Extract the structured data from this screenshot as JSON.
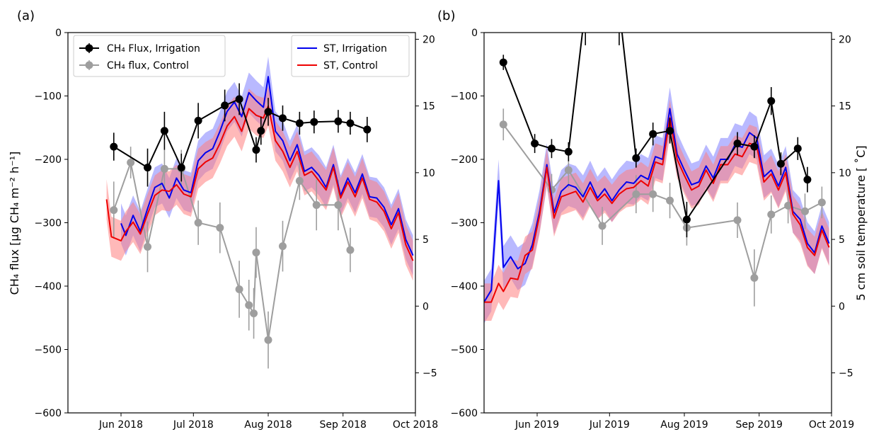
{
  "colors": {
    "flux_irrigation": "#000000",
    "flux_control": "#9e9e9e",
    "st_irrigation": "#0000ee",
    "st_control": "#ee0000",
    "band_irrigation": "#8080ff",
    "band_control": "#ff8080"
  },
  "labels": {
    "ylabel_left": "CH₄ flux [µg CH₄ m⁻² h⁻¹]",
    "ylabel_right": "5 cm soil temperature [ ˚C]"
  },
  "legend": {
    "flux_irrigation": "CH₄ Flux, Irrigation",
    "flux_control": "CH₄ flux, Control",
    "st_irrigation": "ST, Irrigation",
    "st_control": "ST, Control"
  },
  "chart_data": [
    {
      "type": "line",
      "panel_label": "(a)",
      "x_type": "date",
      "xlim": [
        "2018-05-10",
        "2018-10-01"
      ],
      "x_ticks": [
        {
          "date": "2018-06-01",
          "label": "Jun 2018"
        },
        {
          "date": "2018-07-01",
          "label": "Jul 2018"
        },
        {
          "date": "2018-08-01",
          "label": "Aug 2018"
        },
        {
          "date": "2018-09-01",
          "label": "Sep 2018"
        },
        {
          "date": "2018-10-01",
          "label": "Oct 2018"
        }
      ],
      "ylim_left": [
        -600,
        0
      ],
      "yticks_left": [
        0,
        -100,
        -200,
        -300,
        -400,
        -500,
        -600
      ],
      "ylim_right": [
        -8,
        20.5
      ],
      "yticks_right": [
        20,
        15,
        10,
        5,
        0,
        -5
      ],
      "legend_left_position": "top-left",
      "legend_right_position": "top-right",
      "series": [
        {
          "name": "CH₄ Flux, Irrigation",
          "axis": "left",
          "marker": "circle",
          "x": [
            "2018-05-29",
            "2018-06-12",
            "2018-06-19",
            "2018-06-26",
            "2018-07-03",
            "2018-07-14",
            "2018-07-20",
            "2018-07-27",
            "2018-07-29",
            "2018-08-01",
            "2018-08-07",
            "2018-08-14",
            "2018-08-20",
            "2018-08-30",
            "2018-09-04",
            "2018-09-11"
          ],
          "y": [
            -180,
            -213,
            -155,
            -213,
            -139,
            -115,
            -105,
            -185,
            -155,
            -125,
            -135,
            -143,
            -141,
            -140,
            -143,
            -153
          ],
          "yerr": [
            22,
            30,
            30,
            22,
            28,
            25,
            25,
            20,
            22,
            22,
            20,
            18,
            18,
            18,
            18,
            20
          ]
        },
        {
          "name": "CH₄ flux, Control",
          "axis": "left",
          "marker": "circle",
          "x": [
            "2018-05-29",
            "2018-06-05",
            "2018-06-12",
            "2018-06-19",
            "2018-06-26",
            "2018-07-03",
            "2018-07-12",
            "2018-07-20",
            "2018-07-24",
            "2018-07-26",
            "2018-07-27",
            "2018-08-01",
            "2018-08-07",
            "2018-08-14",
            "2018-08-21",
            "2018-08-30",
            "2018-09-04"
          ],
          "y": [
            -280,
            -205,
            -338,
            -215,
            -215,
            -300,
            -308,
            -405,
            -430,
            -443,
            -347,
            -485,
            -337,
            -234,
            -272,
            -272,
            -343
          ],
          "yerr": [
            45,
            25,
            40,
            30,
            30,
            35,
            40,
            45,
            40,
            40,
            40,
            45,
            40,
            30,
            40,
            40,
            35
          ]
        },
        {
          "name": "ST, Irrigation",
          "axis": "right",
          "x": [
            "2018-06-01",
            "2018-06-03",
            "2018-06-06",
            "2018-06-09",
            "2018-06-12",
            "2018-06-15",
            "2018-06-18",
            "2018-06-21",
            "2018-06-24",
            "2018-06-27",
            "2018-06-30",
            "2018-07-03",
            "2018-07-06",
            "2018-07-09",
            "2018-07-12",
            "2018-07-15",
            "2018-07-18",
            "2018-07-21",
            "2018-07-24",
            "2018-07-27",
            "2018-07-30",
            "2018-08-01",
            "2018-08-04",
            "2018-08-07",
            "2018-08-10",
            "2018-08-13",
            "2018-08-16",
            "2018-08-19",
            "2018-08-22",
            "2018-08-25",
            "2018-08-28",
            "2018-08-31",
            "2018-09-03",
            "2018-09-06",
            "2018-09-09",
            "2018-09-12",
            "2018-09-15",
            "2018-09-18",
            "2018-09-21",
            "2018-09-24",
            "2018-09-27",
            "2018-09-30"
          ],
          "y": [
            6.2,
            5.3,
            6.8,
            5.6,
            7.3,
            8.9,
            9.2,
            8.1,
            9.6,
            8.7,
            8.5,
            10.9,
            11.5,
            11.8,
            13.1,
            14.6,
            15.3,
            14.2,
            16.0,
            15.4,
            14.9,
            17.2,
            13.1,
            12.4,
            10.9,
            12.1,
            10.1,
            10.4,
            9.8,
            8.9,
            10.6,
            8.3,
            9.6,
            8.5,
            9.9,
            8.2,
            8.1,
            7.4,
            6.1,
            7.3,
            5.0,
            3.8
          ],
          "band": 1.5
        },
        {
          "name": "ST, Control",
          "axis": "right",
          "x": [
            "2018-05-26",
            "2018-05-28",
            "2018-06-01",
            "2018-06-03",
            "2018-06-06",
            "2018-06-09",
            "2018-06-12",
            "2018-06-15",
            "2018-06-18",
            "2018-06-21",
            "2018-06-24",
            "2018-06-27",
            "2018-06-30",
            "2018-07-03",
            "2018-07-06",
            "2018-07-09",
            "2018-07-12",
            "2018-07-15",
            "2018-07-18",
            "2018-07-21",
            "2018-07-24",
            "2018-07-27",
            "2018-07-30",
            "2018-08-01",
            "2018-08-04",
            "2018-08-07",
            "2018-08-10",
            "2018-08-13",
            "2018-08-16",
            "2018-08-19",
            "2018-08-22",
            "2018-08-25",
            "2018-08-28",
            "2018-08-31",
            "2018-09-03",
            "2018-09-06",
            "2018-09-09",
            "2018-09-12",
            "2018-09-15",
            "2018-09-18",
            "2018-09-21",
            "2018-09-24",
            "2018-09-27",
            "2018-09-30"
          ],
          "y": [
            8.0,
            5.2,
            4.9,
            5.6,
            6.3,
            5.4,
            6.9,
            8.3,
            8.7,
            8.6,
            9.1,
            8.4,
            8.2,
            10.3,
            10.8,
            11.1,
            12.2,
            13.5,
            14.2,
            13.1,
            14.8,
            14.3,
            14.1,
            15.0,
            12.4,
            11.6,
            10.4,
            11.6,
            9.8,
            10.1,
            9.4,
            8.7,
            10.4,
            8.1,
            9.3,
            8.2,
            9.6,
            8.0,
            7.8,
            7.1,
            5.8,
            7.0,
            4.6,
            3.4
          ],
          "band": 1.5
        }
      ]
    },
    {
      "type": "line",
      "panel_label": "(b)",
      "x_type": "date",
      "xlim": [
        "2019-05-10",
        "2019-10-01"
      ],
      "x_ticks": [
        {
          "date": "2019-06-01",
          "label": "Jun 2019"
        },
        {
          "date": "2019-07-01",
          "label": "Jul 2019"
        },
        {
          "date": "2019-08-01",
          "label": "Aug 2019"
        },
        {
          "date": "2019-09-01",
          "label": "Sep 2019"
        },
        {
          "date": "2019-10-01",
          "label": "Oct 2019"
        }
      ],
      "ylim_left": [
        -600,
        0
      ],
      "yticks_left": [
        0,
        -100,
        -200,
        -300,
        -400,
        -500,
        -600
      ],
      "ylim_right": [
        -8,
        20.5
      ],
      "yticks_right": [
        20,
        15,
        10,
        5,
        0,
        -5
      ],
      "series": [
        {
          "name": "CH₄ Flux, Irrigation",
          "axis": "left",
          "marker": "circle",
          "x": [
            "2019-05-18",
            "2019-05-31",
            "2019-06-07",
            "2019-06-14",
            "2019-06-21",
            "2019-07-05",
            "2019-07-12",
            "2019-07-19",
            "2019-07-26",
            "2019-08-02",
            "2019-08-23",
            "2019-08-30",
            "2019-09-06",
            "2019-09-10",
            "2019-09-17",
            "2019-09-21"
          ],
          "y": [
            -47,
            -175,
            -183,
            -188,
            40,
            40,
            -198,
            -160,
            -155,
            -295,
            -175,
            -180,
            -108,
            -207,
            -183,
            -232
          ],
          "yerr": [
            12,
            15,
            15,
            15,
            60,
            60,
            15,
            18,
            20,
            28,
            18,
            18,
            22,
            18,
            18,
            20
          ]
        },
        {
          "name": "CH₄ flux, Control",
          "axis": "left",
          "marker": "circle",
          "x": [
            "2019-05-18",
            "2019-06-07",
            "2019-06-14",
            "2019-06-28",
            "2019-07-12",
            "2019-07-19",
            "2019-07-26",
            "2019-08-02",
            "2019-08-23",
            "2019-08-30",
            "2019-09-06",
            "2019-09-13",
            "2019-09-20",
            "2019-09-27"
          ],
          "y": [
            -145,
            -248,
            -217,
            -305,
            -255,
            -255,
            -265,
            -308,
            -296,
            -387,
            -287,
            -273,
            -282,
            -268
          ],
          "yerr": [
            25,
            25,
            28,
            30,
            30,
            28,
            28,
            28,
            28,
            45,
            30,
            28,
            28,
            25
          ]
        },
        {
          "name": "ST, Irrigation",
          "axis": "right",
          "x": [
            "2019-05-10",
            "2019-05-13",
            "2019-05-16",
            "2019-05-18",
            "2019-05-21",
            "2019-05-24",
            "2019-05-27",
            "2019-05-30",
            "2019-06-02",
            "2019-06-05",
            "2019-06-08",
            "2019-06-11",
            "2019-06-14",
            "2019-06-17",
            "2019-06-20",
            "2019-06-23",
            "2019-06-26",
            "2019-06-29",
            "2019-07-02",
            "2019-07-05",
            "2019-07-08",
            "2019-07-11",
            "2019-07-14",
            "2019-07-17",
            "2019-07-20",
            "2019-07-23",
            "2019-07-26",
            "2019-07-29",
            "2019-08-01",
            "2019-08-04",
            "2019-08-07",
            "2019-08-10",
            "2019-08-13",
            "2019-08-16",
            "2019-08-19",
            "2019-08-22",
            "2019-08-25",
            "2019-08-28",
            "2019-08-31",
            "2019-09-03",
            "2019-09-06",
            "2019-09-09",
            "2019-09-12",
            "2019-09-15",
            "2019-09-18",
            "2019-09-21",
            "2019-09-24",
            "2019-09-27",
            "2019-09-30"
          ],
          "y": [
            0.3,
            1.2,
            9.4,
            2.9,
            3.7,
            2.8,
            3.2,
            4.6,
            7.1,
            10.6,
            7.0,
            8.6,
            9.1,
            8.9,
            8.2,
            9.3,
            8.1,
            8.8,
            7.9,
            8.7,
            9.3,
            9.2,
            9.8,
            9.5,
            11.2,
            11.0,
            14.8,
            11.4,
            10.2,
            9.1,
            9.3,
            10.5,
            9.6,
            11.0,
            11.0,
            12.1,
            11.9,
            13.0,
            12.6,
            9.7,
            10.2,
            9.0,
            10.4,
            7.1,
            6.5,
            4.7,
            4.0,
            6.0,
            4.7
          ],
          "band": 1.6
        },
        {
          "name": "ST, Control",
          "axis": "right",
          "x": [
            "2019-05-10",
            "2019-05-13",
            "2019-05-16",
            "2019-05-18",
            "2019-05-21",
            "2019-05-24",
            "2019-05-27",
            "2019-05-30",
            "2019-06-02",
            "2019-06-05",
            "2019-06-08",
            "2019-06-11",
            "2019-06-14",
            "2019-06-17",
            "2019-06-20",
            "2019-06-23",
            "2019-06-26",
            "2019-06-29",
            "2019-07-02",
            "2019-07-05",
            "2019-07-08",
            "2019-07-11",
            "2019-07-14",
            "2019-07-17",
            "2019-07-20",
            "2019-07-23",
            "2019-07-26",
            "2019-07-29",
            "2019-08-01",
            "2019-08-04",
            "2019-08-07",
            "2019-08-10",
            "2019-08-13",
            "2019-08-16",
            "2019-08-19",
            "2019-08-22",
            "2019-08-25",
            "2019-08-28",
            "2019-08-31",
            "2019-09-03",
            "2019-09-06",
            "2019-09-09",
            "2019-09-12",
            "2019-09-15",
            "2019-09-18",
            "2019-09-21",
            "2019-09-24",
            "2019-09-27",
            "2019-09-30"
          ],
          "y": [
            0.3,
            0.3,
            1.7,
            1.1,
            2.1,
            2.0,
            3.8,
            4.2,
            6.8,
            10.4,
            6.6,
            8.2,
            8.4,
            8.6,
            7.8,
            8.9,
            7.9,
            8.4,
            7.7,
            8.4,
            8.8,
            8.9,
            9.4,
            9.0,
            10.8,
            10.6,
            14.1,
            11.0,
            9.8,
            8.7,
            9.0,
            10.2,
            9.2,
            10.6,
            10.6,
            11.4,
            11.2,
            12.2,
            12.0,
            9.3,
            9.9,
            8.7,
            10.0,
            6.9,
            6.1,
            4.4,
            3.8,
            5.7,
            4.4
          ],
          "band": 1.4
        }
      ]
    }
  ]
}
